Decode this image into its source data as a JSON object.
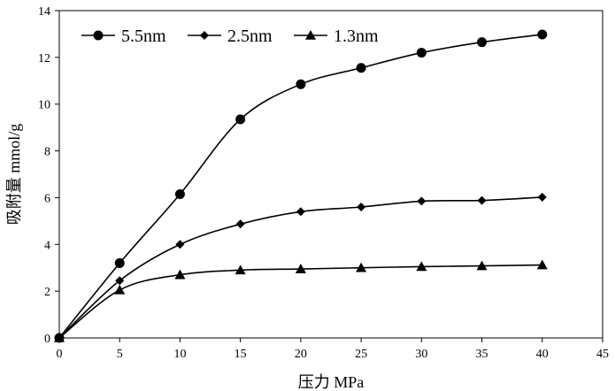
{
  "chart_data": {
    "type": "line",
    "title": "",
    "xlabel": "压力 MPa",
    "ylabel": "吸附量 mmol/g",
    "xlim": [
      0,
      45
    ],
    "ylim": [
      0,
      14
    ],
    "xticks": [
      0,
      5,
      10,
      15,
      20,
      25,
      30,
      35,
      40,
      45
    ],
    "yticks": [
      0,
      2,
      4,
      6,
      8,
      10,
      12,
      14
    ],
    "grid": false,
    "legend_position": "top-left",
    "series": [
      {
        "name": "5.5nm",
        "marker": "circle",
        "x": [
          0,
          5,
          10,
          15,
          20,
          25,
          30,
          35,
          40
        ],
        "y": [
          0,
          3.2,
          6.15,
          9.35,
          10.85,
          11.55,
          12.2,
          12.65,
          12.98
        ]
      },
      {
        "name": "2.5nm",
        "marker": "diamond",
        "x": [
          0,
          5,
          10,
          15,
          20,
          25,
          30,
          35,
          40
        ],
        "y": [
          0,
          2.45,
          4.0,
          4.87,
          5.4,
          5.6,
          5.85,
          5.88,
          6.02
        ]
      },
      {
        "name": "1.3nm",
        "marker": "triangle",
        "x": [
          0,
          5,
          10,
          15,
          20,
          25,
          30,
          35,
          40
        ],
        "y": [
          0,
          2.05,
          2.7,
          2.9,
          2.95,
          3.0,
          3.05,
          3.08,
          3.12
        ]
      }
    ]
  }
}
